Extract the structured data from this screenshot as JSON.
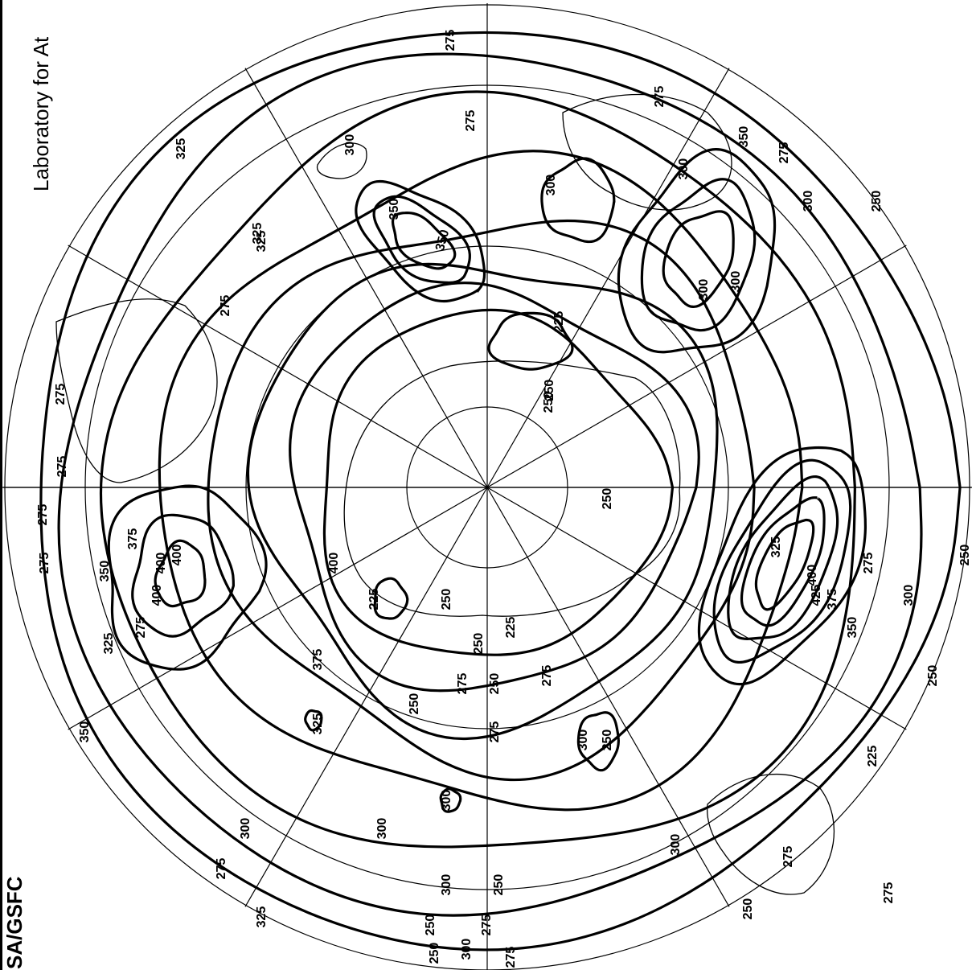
{
  "header": {
    "right_title": "Laboratory for At",
    "left_credit": "SA/GSFC"
  },
  "map": {
    "projection": "polar stereographic (south pole centered)",
    "colors": {
      "ink": "#000000",
      "paper": "#ffffff"
    },
    "contour_labels": [
      "275",
      "275",
      "300",
      "350",
      "350",
      "300",
      "325",
      "275",
      "325",
      "325",
      "275",
      "250",
      "300",
      "350",
      "300",
      "275",
      "275",
      "225",
      "250",
      "275",
      "250",
      "275",
      "275",
      "375",
      "400",
      "400",
      "350",
      "250",
      "425",
      "400",
      "375",
      "350",
      "300",
      "250",
      "325",
      "275",
      "225",
      "250",
      "225",
      "250",
      "275",
      "250",
      "275",
      "275",
      "250",
      "300",
      "300",
      "300",
      "250",
      "325",
      "300",
      "275",
      "250",
      "300",
      "250",
      "275",
      "225",
      "350",
      "300",
      "325",
      "275",
      "250",
      "275",
      "300",
      "300",
      "250",
      "275",
      "400",
      "375",
      "400",
      "325",
      "300",
      "250",
      "275"
    ]
  }
}
